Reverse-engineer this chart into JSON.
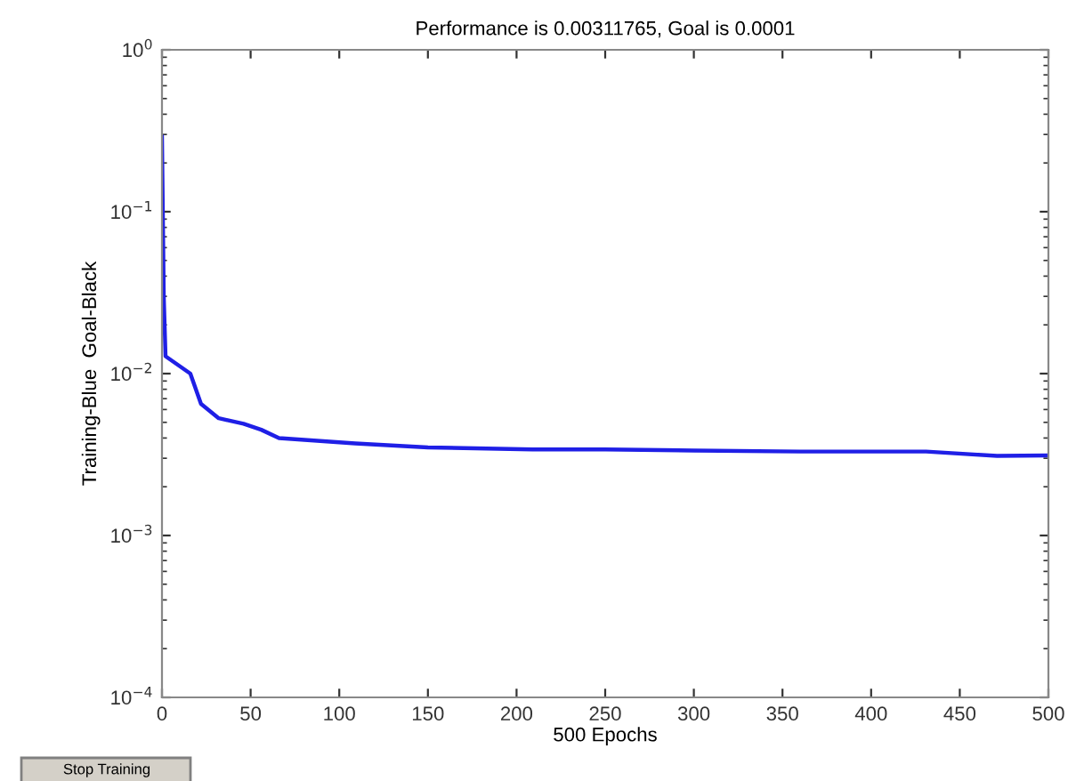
{
  "chart_data": {
    "type": "line",
    "title": "Performance is 0.00311765, Goal is 0.0001",
    "xlabel": "500 Epochs",
    "ylabel": "Training-Blue  Goal-Black",
    "x": [
      0,
      1,
      2,
      16,
      22,
      32,
      46,
      56,
      66,
      109,
      150,
      209,
      250,
      300,
      360,
      400,
      431,
      471,
      500
    ],
    "series": [
      {
        "color": "#1f1fe6",
        "values": [
          0.29,
          0.03,
          0.0128,
          0.01,
          0.0065,
          0.0053,
          0.0049,
          0.0045,
          0.004,
          0.0037,
          0.0035,
          0.0034,
          0.0034,
          0.00335,
          0.0033,
          0.0033,
          0.0033,
          0.0031,
          0.00312
        ]
      }
    ],
    "log": "y",
    "xlim": [
      0,
      500
    ],
    "ylim": [
      0.0001,
      1
    ],
    "xticks": [
      0,
      50,
      100,
      150,
      200,
      250,
      300,
      350,
      400,
      450,
      500
    ],
    "yticks": [
      {
        "value": 0.0001,
        "label": "10$^{−4}$"
      },
      {
        "value": 0.001,
        "label": "10$^{−3}$"
      },
      {
        "value": 0.01,
        "label": "10$^{−2}$"
      },
      {
        "value": 0.1,
        "label": "10$^{−1}$"
      },
      {
        "value": 1,
        "label": "10$^{0}$"
      }
    ],
    "grid": false,
    "legend": false,
    "line_style": "solid",
    "marker": "none",
    "annotations": [
      "Stop Training"
    ]
  }
}
